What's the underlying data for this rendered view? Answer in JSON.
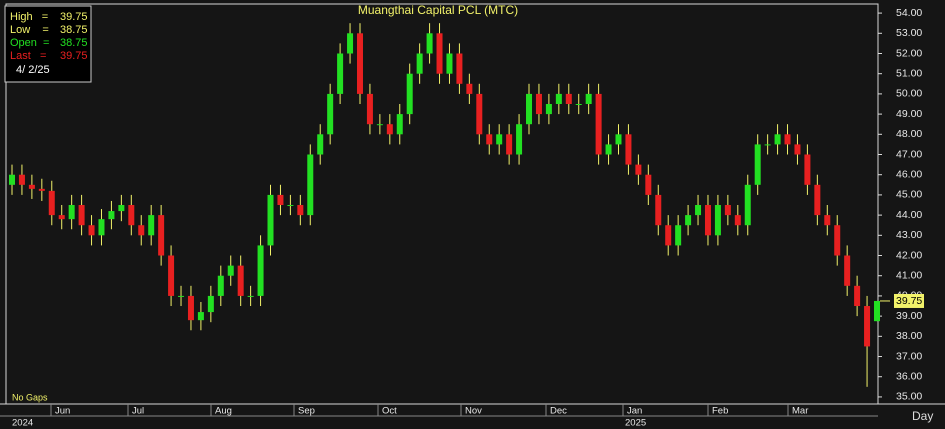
{
  "chart_data": {
    "type": "candlestick",
    "title": "Muangthai Capital PCL (MTC)",
    "info_labels": [
      "High   =",
      "Low    =",
      "Open  =",
      "Last   ="
    ],
    "date_label": "4/ 2/25",
    "footnote": "No Gaps",
    "period_label": "Day",
    "months": [
      "Jun",
      "Jul",
      "Aug",
      "Sep",
      "Oct",
      "Nov",
      "Dec",
      "Jan",
      "Feb",
      "Mar"
    ],
    "years": [
      "2024",
      "2025"
    ],
    "up_color": "#22e022",
    "down_color": "#e82020",
    "wick_color": "#f2f26a",
    "ylim": [
      34.65,
      54.45
    ],
    "yticks": [
      {
        "value": 35,
        "label": "35.00"
      },
      {
        "value": 36,
        "label": "36.00"
      },
      {
        "value": 37,
        "label": "37.00"
      },
      {
        "value": 38,
        "label": "38.00"
      },
      {
        "value": 39,
        "label": "39.00"
      },
      {
        "value": 40,
        "label": "40.00"
      },
      {
        "value": 41,
        "label": "41.00"
      },
      {
        "value": 42,
        "label": "42.00"
      },
      {
        "value": 43,
        "label": "43.00"
      },
      {
        "value": 44,
        "label": "44.00"
      },
      {
        "value": 45,
        "label": "45.00"
      },
      {
        "value": 46,
        "label": "46.00"
      },
      {
        "value": 47,
        "label": "47.00"
      },
      {
        "value": 48,
        "label": "48.00"
      },
      {
        "value": 49,
        "label": "49.00"
      },
      {
        "value": 50,
        "label": "50.00"
      },
      {
        "value": 51,
        "label": "51.00"
      },
      {
        "value": 52,
        "label": "52.00"
      },
      {
        "value": 53,
        "label": "53.00"
      },
      {
        "value": 54,
        "label": "54.00"
      }
    ],
    "open": [
      45.5,
      46.0,
      45.5,
      45.3,
      45.2,
      44.0,
      43.8,
      44.5,
      43.5,
      43.0,
      43.8,
      44.2,
      44.5,
      43.5,
      43.0,
      44.0,
      42.0,
      40.0,
      40.0,
      38.8,
      39.2,
      40.0,
      41.0,
      41.5,
      40.0,
      40.0,
      42.5,
      45.0,
      44.5,
      44.5,
      44.0,
      47.0,
      48.0,
      50.0,
      52.0,
      53.0,
      50.0,
      48.5,
      48.5,
      48.0,
      49.0,
      51.0,
      52.0,
      53.0,
      51.0,
      52.0,
      50.5,
      50.0,
      48.0,
      47.5,
      48.0,
      47.0,
      48.5,
      50.0,
      49.0,
      49.5,
      50.0,
      49.5,
      49.5,
      50.0,
      47.0,
      47.5,
      48.0,
      46.5,
      46.0,
      45.0,
      43.5,
      42.5,
      43.5,
      44.0,
      44.5,
      43.0,
      44.5,
      44.0,
      43.5,
      45.5,
      47.5,
      47.5,
      48.0,
      47.5,
      47.0,
      45.5,
      44.0,
      43.5,
      42.0,
      40.5,
      39.5,
      38.75
    ],
    "high": [
      46.5,
      46.5,
      46.0,
      45.8,
      45.7,
      44.5,
      45.0,
      45.0,
      44.0,
      44.3,
      44.7,
      45.0,
      45.0,
      44.0,
      44.5,
      44.5,
      42.5,
      40.5,
      40.5,
      39.7,
      40.5,
      41.5,
      42.0,
      42.0,
      40.5,
      43.0,
      45.5,
      45.5,
      45.0,
      45.0,
      47.5,
      48.5,
      50.5,
      52.5,
      53.5,
      53.5,
      50.5,
      49.0,
      49.0,
      49.5,
      51.5,
      52.5,
      53.5,
      53.5,
      52.5,
      52.5,
      51.0,
      50.5,
      48.5,
      48.5,
      48.5,
      49.0,
      50.5,
      50.5,
      50.0,
      50.5,
      50.5,
      50.0,
      50.5,
      50.5,
      48.0,
      48.5,
      48.5,
      47.0,
      46.5,
      45.5,
      44.0,
      44.0,
      44.5,
      45.0,
      45.0,
      45.0,
      45.0,
      44.5,
      46.0,
      48.0,
      48.0,
      48.5,
      48.5,
      48.0,
      47.5,
      46.0,
      44.5,
      44.0,
      42.5,
      41.0,
      40.0,
      39.75
    ],
    "low": [
      45.0,
      45.0,
      44.8,
      44.7,
      43.5,
      43.3,
      43.3,
      43.0,
      42.5,
      42.5,
      43.3,
      43.7,
      43.0,
      42.5,
      42.5,
      41.5,
      39.5,
      39.5,
      38.3,
      38.3,
      38.7,
      39.5,
      40.5,
      39.5,
      39.5,
      39.5,
      42.0,
      44.0,
      44.0,
      43.5,
      43.5,
      46.5,
      47.5,
      49.5,
      51.5,
      49.5,
      48.0,
      48.0,
      47.5,
      47.5,
      48.5,
      50.5,
      51.5,
      50.5,
      50.5,
      50.0,
      49.5,
      47.5,
      47.0,
      47.0,
      46.5,
      46.5,
      48.0,
      48.5,
      48.5,
      49.0,
      49.0,
      49.0,
      49.0,
      46.5,
      46.5,
      47.0,
      46.0,
      45.5,
      44.5,
      43.0,
      42.0,
      42.0,
      43.0,
      43.5,
      42.5,
      42.5,
      43.5,
      43.0,
      43.0,
      45.0,
      47.0,
      47.0,
      47.0,
      46.5,
      45.0,
      43.5,
      43.0,
      41.5,
      40.0,
      39.0,
      35.5,
      38.75
    ],
    "close": [
      46.0,
      45.5,
      45.3,
      45.2,
      44.0,
      43.8,
      44.5,
      43.5,
      43.0,
      43.8,
      44.2,
      44.5,
      43.5,
      43.0,
      44.0,
      42.0,
      40.0,
      40.0,
      38.8,
      39.2,
      40.0,
      41.0,
      41.5,
      40.0,
      40.0,
      42.5,
      45.0,
      44.5,
      44.5,
      44.0,
      47.0,
      48.0,
      50.0,
      52.0,
      53.0,
      50.0,
      48.5,
      48.5,
      48.0,
      49.0,
      51.0,
      52.0,
      53.0,
      51.0,
      52.0,
      50.5,
      50.0,
      48.0,
      47.5,
      48.0,
      47.0,
      48.5,
      50.0,
      49.0,
      49.5,
      50.0,
      49.5,
      49.5,
      50.0,
      47.0,
      47.5,
      48.0,
      46.5,
      46.0,
      45.0,
      43.5,
      42.5,
      43.5,
      44.0,
      44.5,
      43.0,
      44.5,
      44.0,
      43.5,
      45.5,
      47.5,
      47.5,
      48.0,
      47.5,
      47.0,
      45.5,
      44.0,
      43.5,
      42.0,
      40.5,
      39.5,
      37.5,
      39.75
    ]
  }
}
